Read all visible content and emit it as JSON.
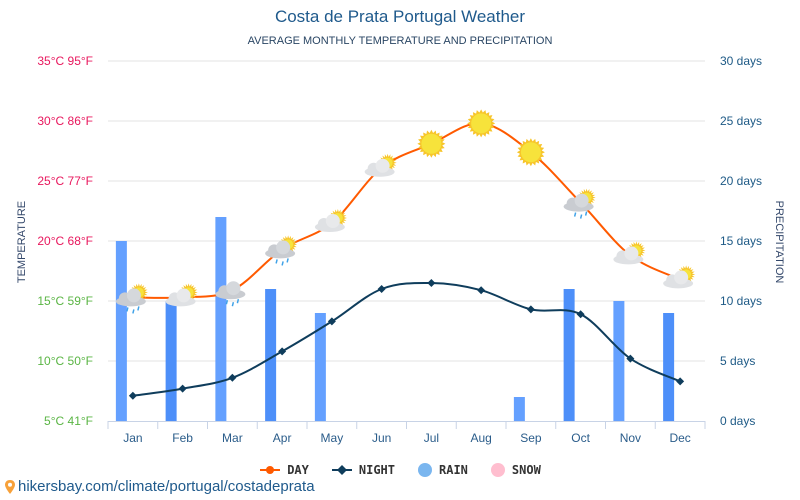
{
  "header": {
    "title": "Costa de Prata Portugal Weather",
    "subtitle": "AVERAGE MONTHLY TEMPERATURE AND PRECIPITATION"
  },
  "chart_data": {
    "type": "line",
    "title": "Costa de Prata Portugal Weather",
    "subtitle": "AVERAGE MONTHLY TEMPERATURE AND PRECIPITATION",
    "categories": [
      "Jan",
      "Feb",
      "Mar",
      "Apr",
      "May",
      "Jun",
      "Jul",
      "Aug",
      "Sep",
      "Oct",
      "Nov",
      "Dec"
    ],
    "left_axis": {
      "label": "TEMPERATURE",
      "range": [
        5,
        35
      ],
      "ticks": [
        {
          "value": 35,
          "label": "35°C 95°F",
          "color": "#e8175d"
        },
        {
          "value": 30,
          "label": "30°C 86°F",
          "color": "#e8175d"
        },
        {
          "value": 25,
          "label": "25°C 77°F",
          "color": "#e8175d"
        },
        {
          "value": 20,
          "label": "20°C 68°F",
          "color": "#e8175d"
        },
        {
          "value": 15,
          "label": "15°C 59°F",
          "color": "#5ab544"
        },
        {
          "value": 10,
          "label": "10°C 50°F",
          "color": "#5ab544"
        },
        {
          "value": 5,
          "label": "5°C 41°F",
          "color": "#5ab544"
        }
      ]
    },
    "right_axis": {
      "label": "PRECIPITATION",
      "range": [
        0,
        30
      ],
      "ticks": [
        {
          "value": 30,
          "label": "30 days"
        },
        {
          "value": 25,
          "label": "25 days"
        },
        {
          "value": 20,
          "label": "20 days"
        },
        {
          "value": 15,
          "label": "15 days"
        },
        {
          "value": 10,
          "label": "10 days"
        },
        {
          "value": 5,
          "label": "5 days"
        },
        {
          "value": 0,
          "label": "0 days"
        }
      ]
    },
    "grid": true,
    "series": [
      {
        "name": "DAY",
        "type": "line",
        "axis": "left",
        "color": "#ff5a00",
        "values": [
          15.3,
          15.3,
          15.9,
          19.3,
          21.5,
          26.1,
          28.1,
          29.8,
          27.4,
          23.2,
          18.8,
          16.8
        ],
        "icons": [
          "cloud-sun-rain",
          "cloud-sun",
          "cloud-rain",
          "cloud-sun-rain",
          "cloud-sun",
          "cloud-sun",
          "sun",
          "sun",
          "sun",
          "cloud-sun-rain",
          "cloud-sun",
          "cloud-sun"
        ]
      },
      {
        "name": "NIGHT",
        "type": "line",
        "axis": "left",
        "color": "#0f3d5c",
        "values": [
          7.1,
          7.7,
          8.6,
          10.8,
          13.3,
          16.0,
          16.5,
          15.9,
          14.3,
          13.9,
          10.2,
          8.3
        ]
      },
      {
        "name": "RAIN",
        "type": "bar",
        "axis": "right",
        "color": "#5599ff",
        "values": [
          15,
          10,
          17,
          11,
          9,
          0,
          0,
          0,
          2,
          11,
          10,
          9
        ]
      },
      {
        "name": "SNOW",
        "type": "bar",
        "axis": "right",
        "color": "#ffb6c8",
        "values": [
          0,
          0,
          0,
          0,
          0,
          0,
          0,
          0,
          0,
          0,
          0,
          0
        ]
      }
    ],
    "legend_position": "bottom"
  },
  "legend": {
    "items": [
      {
        "label": "DAY",
        "color": "#ff5a00"
      },
      {
        "label": "NIGHT",
        "color": "#0f3d5c"
      },
      {
        "label": "RAIN",
        "color": "#7ab6ef"
      },
      {
        "label": "SNOW",
        "color": "#ffbecf"
      }
    ]
  },
  "footer": {
    "url": "hikersbay.com/climate/portugal/costadeprata",
    "icon": "map-pin-icon",
    "icon_color": "#f7a13a"
  }
}
